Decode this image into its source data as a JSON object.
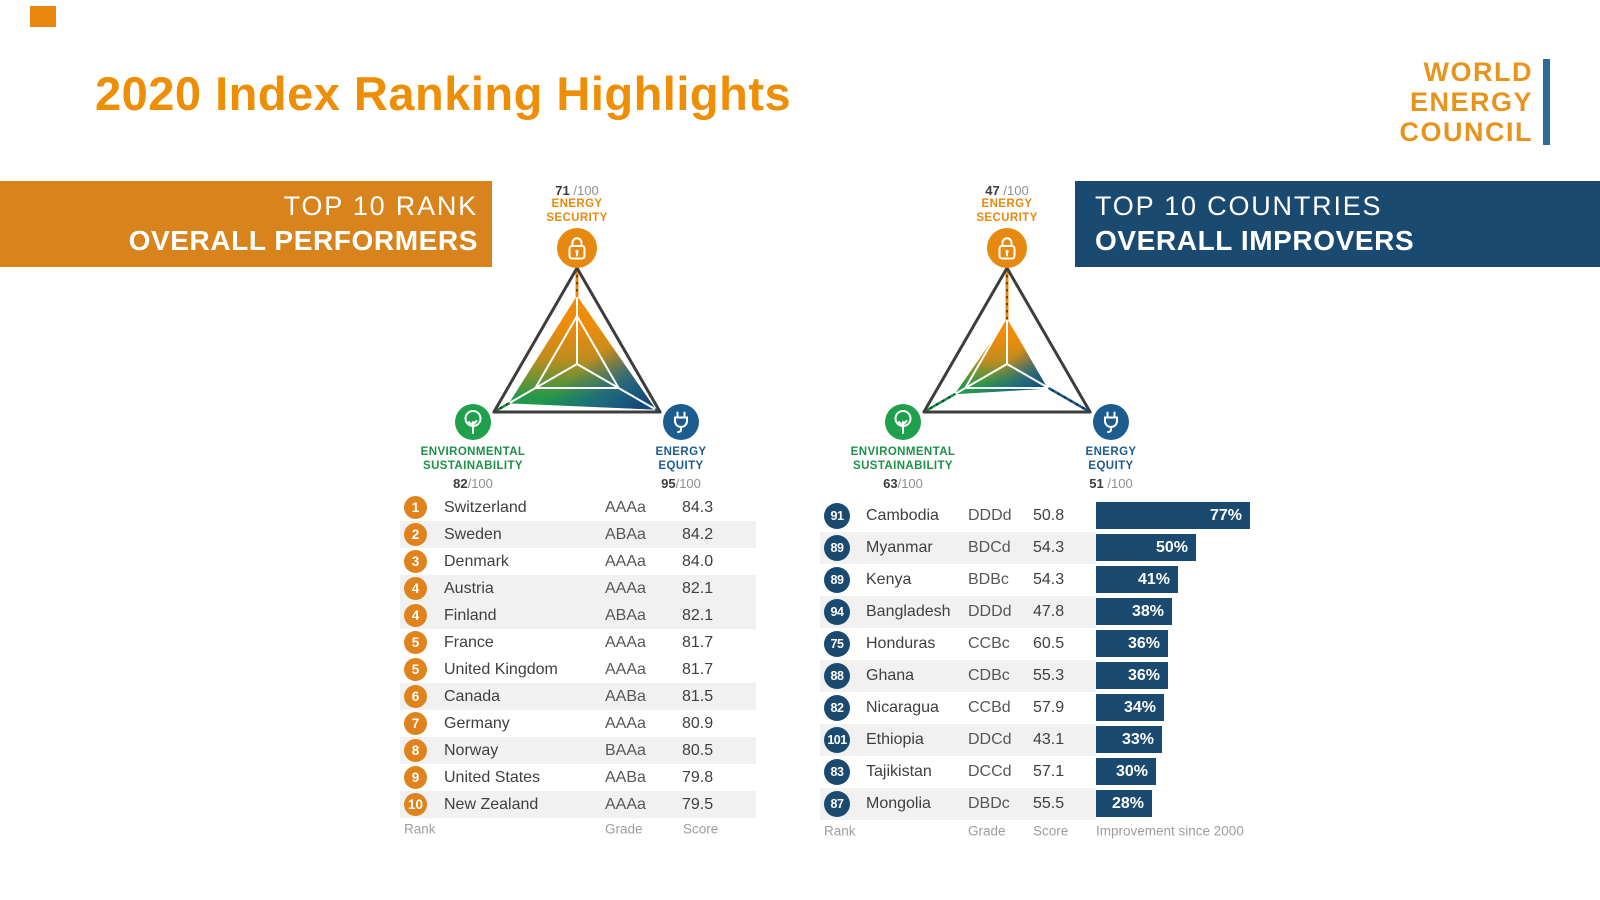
{
  "page": {
    "title": "2020 Index Ranking Highlights"
  },
  "logo": {
    "lines": [
      "WORLD",
      "ENERGY",
      "COUNCIL"
    ]
  },
  "colors": {
    "orange": "#E8890F",
    "banner_orange": "#D9831D",
    "navy": "#1B4A70",
    "green": "#1FA04C",
    "equity_blue": "#1D5C8F",
    "row_shade": "#F1F1F2",
    "logo_bar_blue": "#2B6C9B"
  },
  "left_panel": {
    "banner": {
      "line1": "TOP 10 RANK",
      "line2": "OVERALL PERFORMERS"
    },
    "chart": {
      "security": {
        "score": "71",
        "denom": "/100",
        "title_lines": [
          "ENERGY",
          "SECURITY"
        ]
      },
      "sustainability": {
        "score": "82",
        "denom": "/100",
        "title_lines": [
          "ENVIRONMENTAL",
          "SUSTAINABILITY"
        ]
      },
      "equity": {
        "score": "95",
        "denom": "/100",
        "title_lines": [
          "ENERGY",
          "EQUITY"
        ]
      }
    },
    "table": {
      "rows": [
        {
          "rank": "1",
          "country": "Switzerland",
          "grade": "AAAa",
          "score": "84.3"
        },
        {
          "rank": "2",
          "country": "Sweden",
          "grade": "ABAa",
          "score": "84.2"
        },
        {
          "rank": "3",
          "country": "Denmark",
          "grade": "AAAa",
          "score": "84.0"
        },
        {
          "rank": "4",
          "country": "Austria",
          "grade": "AAAa",
          "score": "82.1"
        },
        {
          "rank": "4",
          "country": "Finland",
          "grade": "ABAa",
          "score": "82.1"
        },
        {
          "rank": "5",
          "country": "France",
          "grade": "AAAa",
          "score": "81.7"
        },
        {
          "rank": "5",
          "country": "United Kingdom",
          "grade": "AAAa",
          "score": "81.7"
        },
        {
          "rank": "6",
          "country": "Canada",
          "grade": "AABa",
          "score": "81.5"
        },
        {
          "rank": "7",
          "country": "Germany",
          "grade": "AAAa",
          "score": "80.9"
        },
        {
          "rank": "8",
          "country": "Norway",
          "grade": "BAAa",
          "score": "80.5"
        },
        {
          "rank": "9",
          "country": "United States",
          "grade": "AABa",
          "score": "79.8"
        },
        {
          "rank": "10",
          "country": "New Zealand",
          "grade": "AAAa",
          "score": "79.5"
        }
      ],
      "footer": {
        "rank": "Rank",
        "grade": "Grade",
        "score": "Score"
      }
    }
  },
  "right_panel": {
    "banner": {
      "line1": "TOP 10 COUNTRIES",
      "line2": "OVERALL IMPROVERS"
    },
    "chart": {
      "security": {
        "score": "47",
        "denom": "/100",
        "title_lines": [
          "ENERGY",
          "SECURITY"
        ]
      },
      "sustainability": {
        "score": "63",
        "denom": "/100",
        "title_lines": [
          "ENVIRONMENTAL",
          "SUSTAINABILITY"
        ]
      },
      "equity": {
        "score": "51",
        "denom": "/100",
        "title_lines": [
          "ENERGY",
          "EQUITY"
        ]
      }
    },
    "table": {
      "rows": [
        {
          "rank": "91",
          "country": "Cambodia",
          "grade": "DDDd",
          "score": "50.8",
          "improvement_pct": 77,
          "improvement_label": "77%"
        },
        {
          "rank": "89",
          "country": "Myanmar",
          "grade": "BDCd",
          "score": "54.3",
          "improvement_pct": 50,
          "improvement_label": "50%"
        },
        {
          "rank": "89",
          "country": "Kenya",
          "grade": "BDBc",
          "score": "54.3",
          "improvement_pct": 41,
          "improvement_label": "41%"
        },
        {
          "rank": "94",
          "country": "Bangladesh",
          "grade": "DDDd",
          "score": "47.8",
          "improvement_pct": 38,
          "improvement_label": "38%"
        },
        {
          "rank": "75",
          "country": "Honduras",
          "grade": "CCBc",
          "score": "60.5",
          "improvement_pct": 36,
          "improvement_label": "36%"
        },
        {
          "rank": "88",
          "country": "Ghana",
          "grade": "CDBc",
          "score": "55.3",
          "improvement_pct": 36,
          "improvement_label": "36%"
        },
        {
          "rank": "82",
          "country": "Nicaragua",
          "grade": "CCBd",
          "score": "57.9",
          "improvement_pct": 34,
          "improvement_label": "34%"
        },
        {
          "rank": "101",
          "country": "Ethiopia",
          "grade": "DDCd",
          "score": "43.1",
          "improvement_pct": 33,
          "improvement_label": "33%"
        },
        {
          "rank": "83",
          "country": "Tajikistan",
          "grade": "DCCd",
          "score": "57.1",
          "improvement_pct": 30,
          "improvement_label": "30%"
        },
        {
          "rank": "87",
          "country": "Mongolia",
          "grade": "DBDc",
          "score": "55.5",
          "improvement_pct": 28,
          "improvement_label": "28%"
        }
      ],
      "footer": {
        "rank": "Rank",
        "grade": "Grade",
        "score": "Score",
        "improvement": "Improvement since 2000"
      }
    }
  },
  "chart_data": [
    {
      "type": "radar",
      "title": "TOP 10 RANK OVERALL PERFORMERS",
      "axes": [
        "Energy Security",
        "Environmental Sustainability",
        "Energy Equity"
      ],
      "values": [
        71,
        82,
        95
      ],
      "max": 100
    },
    {
      "type": "radar",
      "title": "TOP 10 COUNTRIES OVERALL IMPROVERS",
      "axes": [
        "Energy Security",
        "Environmental Sustainability",
        "Energy Equity"
      ],
      "values": [
        47,
        63,
        51
      ],
      "max": 100
    },
    {
      "type": "table",
      "title": "Top 10 Rank Overall Performers",
      "columns": [
        "Rank",
        "Country",
        "Grade",
        "Score"
      ],
      "rows": [
        [
          1,
          "Switzerland",
          "AAAa",
          84.3
        ],
        [
          2,
          "Sweden",
          "ABAa",
          84.2
        ],
        [
          3,
          "Denmark",
          "AAAa",
          84.0
        ],
        [
          4,
          "Austria",
          "AAAa",
          82.1
        ],
        [
          4,
          "Finland",
          "ABAa",
          82.1
        ],
        [
          5,
          "France",
          "AAAa",
          81.7
        ],
        [
          5,
          "United Kingdom",
          "AAAa",
          81.7
        ],
        [
          6,
          "Canada",
          "AABa",
          81.5
        ],
        [
          7,
          "Germany",
          "AAAa",
          80.9
        ],
        [
          8,
          "Norway",
          "BAAa",
          80.5
        ],
        [
          9,
          "United States",
          "AABa",
          79.8
        ],
        [
          10,
          "New Zealand",
          "AAAa",
          79.5
        ]
      ]
    },
    {
      "type": "bar",
      "title": "Improvement since 2000",
      "unit": "%",
      "categories": [
        "Cambodia",
        "Myanmar",
        "Kenya",
        "Bangladesh",
        "Honduras",
        "Ghana",
        "Nicaragua",
        "Ethiopia",
        "Tajikistan",
        "Mongolia"
      ],
      "values": [
        77,
        50,
        41,
        38,
        36,
        36,
        34,
        33,
        30,
        28
      ]
    }
  ]
}
